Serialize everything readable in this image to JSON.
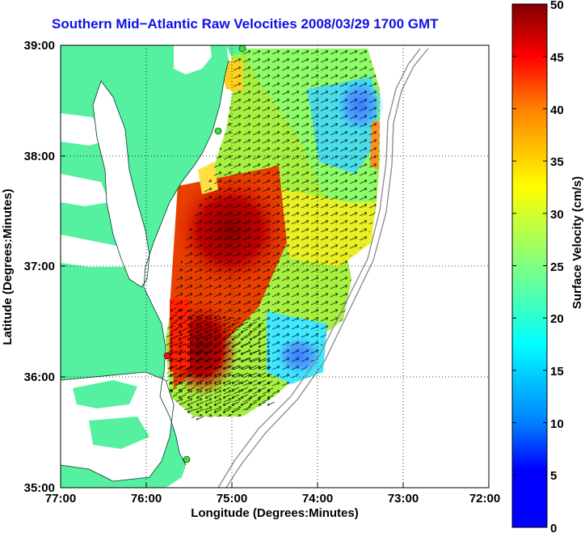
{
  "title": "Southern Mid−Atlantic Raw Velocities 2008/03/29 1700 GMT",
  "x_axis": {
    "label": "Longitude (Degrees:Minutes)",
    "ticks": [
      "77:00",
      "76:00",
      "75:00",
      "74:00",
      "73:00",
      "72:00"
    ]
  },
  "y_axis": {
    "label": "Latitude (Degrees:Minutes)",
    "ticks": [
      "39:00",
      "38:00",
      "37:00",
      "36:00",
      "35:00"
    ]
  },
  "colorbar": {
    "label": "Surface Velocity (cm/s)",
    "ticks": [
      "50",
      "45",
      "40",
      "35",
      "30",
      "25",
      "20",
      "15",
      "10",
      "5",
      "0"
    ],
    "range": [
      0,
      50
    ],
    "colormap": "jet"
  },
  "colors": {
    "land": "#55f0a0",
    "water": "#ffffff",
    "grid": "#000000",
    "title": "#1010e6",
    "station_green": "#38e038",
    "station_red": "#ee1111"
  },
  "chart_data": {
    "type": "heatmap",
    "xlim": [
      "77:00",
      "72:00"
    ],
    "ylim": [
      "35:00",
      "39:00"
    ],
    "stations": [
      {
        "lon": "74:52",
        "lat": "38:57",
        "color": "green"
      },
      {
        "lon": "75:07",
        "lat": "38:12",
        "color": "green"
      },
      {
        "lon": "75:42",
        "lat": "36:11",
        "color": "green"
      },
      {
        "lon": "75:30",
        "lat": "35:15",
        "color": "green"
      }
    ],
    "station_highlight": {
      "lon": "75:42",
      "lat": "36:11",
      "color": "red"
    }
  }
}
